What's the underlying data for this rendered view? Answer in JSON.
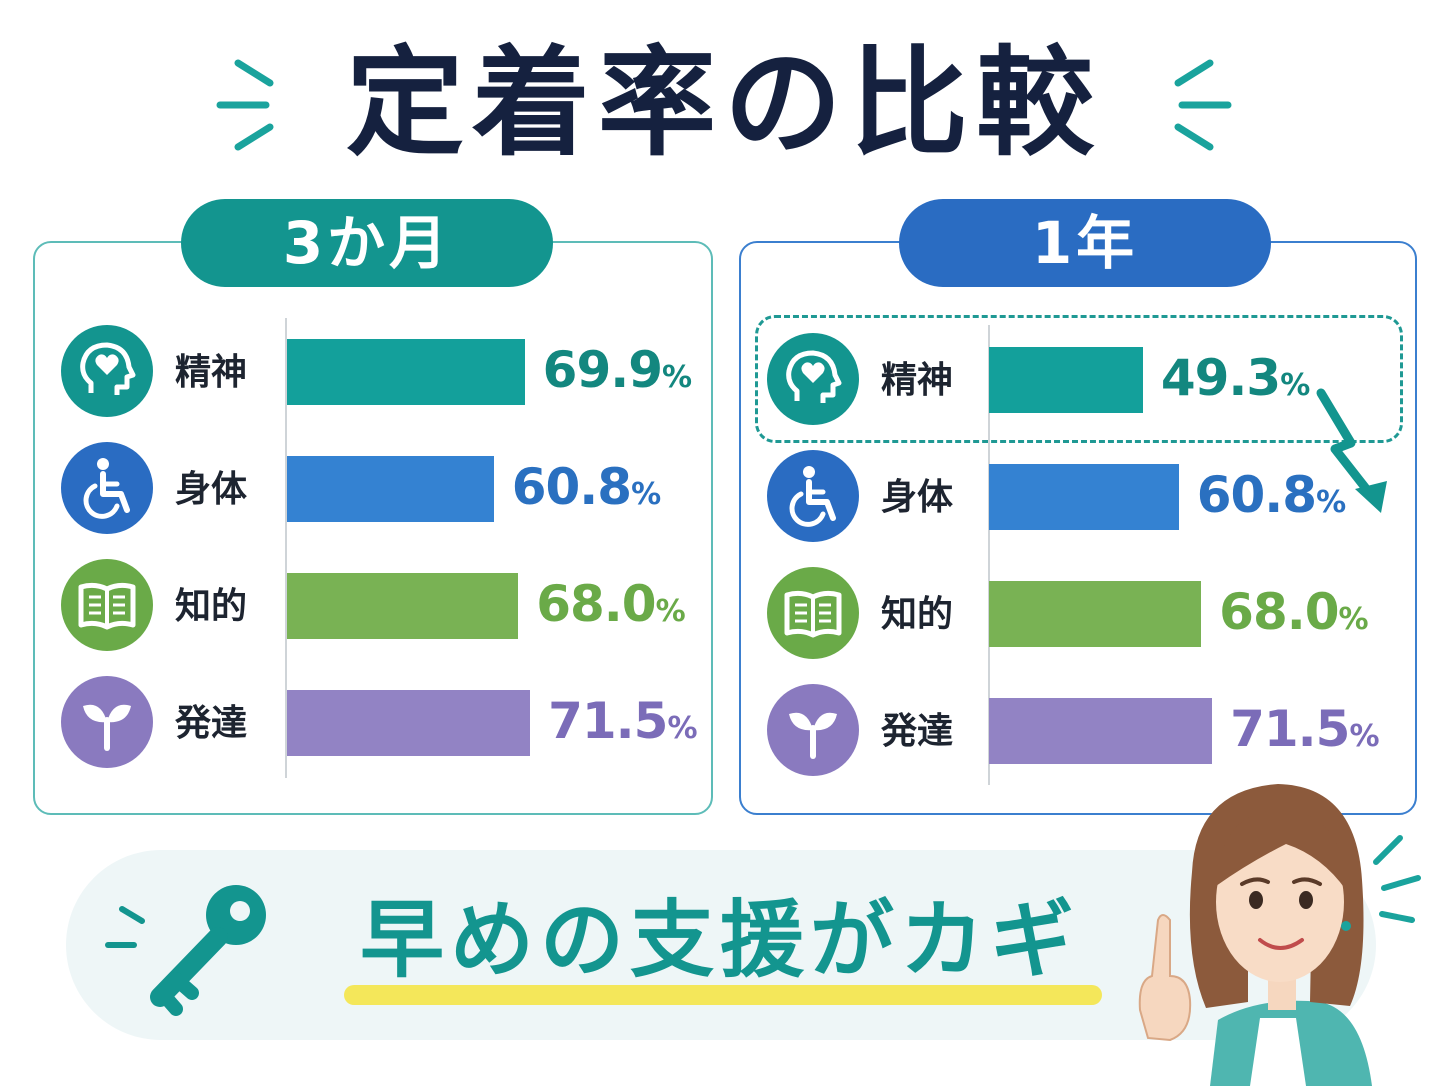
{
  "title": "定着率の比較",
  "colors": {
    "navy": "#15213f",
    "teal": "#13958f",
    "blue": "#2a6cc2",
    "green": "#76b254",
    "purple": "#9283c4",
    "highlight": "#f4e75a"
  },
  "chart_data": [
    {
      "type": "bar",
      "orientation": "horizontal",
      "title": "3か月",
      "categories": [
        "精神",
        "身体",
        "知的",
        "発達"
      ],
      "values": [
        69.9,
        60.8,
        68.0,
        71.5
      ],
      "value_labels": [
        "69.9",
        "60.8",
        "68.0",
        "71.5"
      ],
      "unit": "%",
      "icons": [
        "head-heart-icon",
        "wheelchair-icon",
        "book-icon",
        "sprout-icon"
      ],
      "bar_colors": [
        "#13a09b",
        "#3482d2",
        "#79b254",
        "#9283c4"
      ],
      "label_colors": [
        "#13877f",
        "#2a70c0",
        "#6aaa48",
        "#7b6cb8"
      ]
    },
    {
      "type": "bar",
      "orientation": "horizontal",
      "title": "1年",
      "categories": [
        "精神",
        "身体",
        "知的",
        "発達"
      ],
      "values": [
        49.3,
        60.8,
        68.0,
        71.5
      ],
      "value_labels": [
        "49.3",
        "60.8",
        "68.0",
        "71.5"
      ],
      "unit": "%",
      "icons": [
        "head-heart-icon",
        "wheelchair-icon",
        "book-icon",
        "sprout-icon"
      ],
      "bar_colors": [
        "#13a09b",
        "#3482d2",
        "#79b254",
        "#9283c4"
      ],
      "label_colors": [
        "#13877f",
        "#2a70c0",
        "#6aaa48",
        "#7b6cb8"
      ],
      "highlighted_category": "精神",
      "annotation": "down-arrow-icon"
    }
  ],
  "message": {
    "slogan": "早めの支援がカギ",
    "icon": "key-icon",
    "character": "woman-pointing-illustration"
  }
}
